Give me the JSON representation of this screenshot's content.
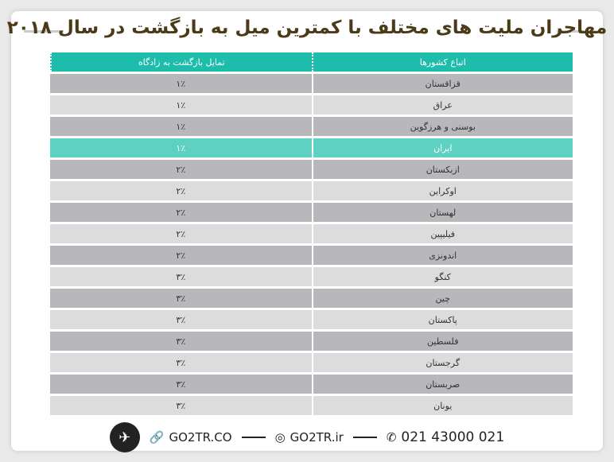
{
  "title": "مهاجران ملیت های مختلف با کمترین میل به بازگشت در سال ۲۰۱۸",
  "table": {
    "headers": [
      "اتباع کشورها",
      "تمایل بازگشت به زادگاه"
    ],
    "rows": [
      {
        "country": "قزاقستان",
        "value": "۱٪"
      },
      {
        "country": "عراق",
        "value": "۱٪"
      },
      {
        "country": "بوسنی و هرزگوین",
        "value": "۱٪"
      },
      {
        "country": "ایران",
        "value": "۱٪",
        "highlight": true
      },
      {
        "country": "ازبکستان",
        "value": "۲٪"
      },
      {
        "country": "اوکراین",
        "value": "۲٪"
      },
      {
        "country": "لهستان",
        "value": "۲٪"
      },
      {
        "country": "فیلیپین",
        "value": "۲٪"
      },
      {
        "country": "اندونزی",
        "value": "۲٪"
      },
      {
        "country": "کنگو",
        "value": "۳٪"
      },
      {
        "country": "چین",
        "value": "۳٪"
      },
      {
        "country": "پاکستان",
        "value": "۳٪"
      },
      {
        "country": "فلسطین",
        "value": "۳٪"
      },
      {
        "country": "گرجستان",
        "value": "۳٪"
      },
      {
        "country": "صربستان",
        "value": "۳٪"
      },
      {
        "country": "یونان",
        "value": "۳٪"
      }
    ]
  },
  "footer": {
    "website": "GO2TR.CO",
    "instagram": "GO2TR.ir",
    "phone": "021 43000 021"
  },
  "colors": {
    "header": "#1ebcaa",
    "highlight": "#5fd1c3",
    "title": "#4a3a17"
  }
}
